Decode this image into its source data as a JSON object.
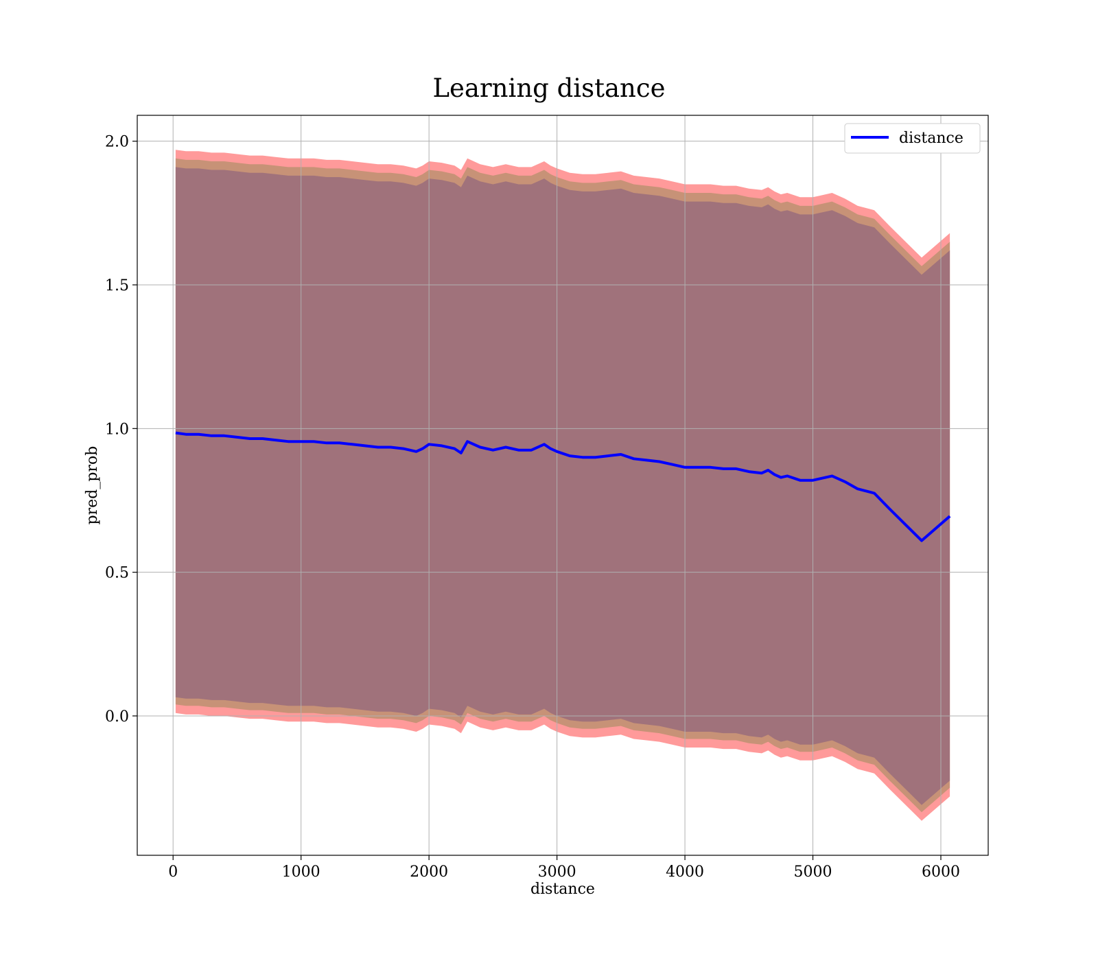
{
  "chart_data": {
    "type": "line",
    "title": "Learning distance",
    "xlabel": "distance",
    "ylabel": "pred_prob",
    "xlim": [
      -280,
      6370
    ],
    "ylim": [
      -0.485,
      2.09
    ],
    "xticks": [
      0,
      1000,
      2000,
      3000,
      4000,
      5000,
      6000
    ],
    "yticks": [
      0.0,
      0.5,
      1.0,
      1.5,
      2.0
    ],
    "xtick_labels": [
      "0",
      "1000",
      "2000",
      "3000",
      "4000",
      "5000",
      "6000"
    ],
    "ytick_labels": [
      "0.0",
      "0.5",
      "1.0",
      "1.5",
      "2.0"
    ],
    "grid": true,
    "legend": {
      "position": "top-right",
      "entries": [
        "distance"
      ]
    },
    "series": [
      {
        "name": "distance",
        "color": "#0000ff",
        "x": [
          20,
          100,
          200,
          300,
          400,
          500,
          600,
          700,
          800,
          900,
          1000,
          1100,
          1200,
          1300,
          1400,
          1500,
          1600,
          1700,
          1800,
          1900,
          1950,
          2000,
          2100,
          2200,
          2250,
          2300,
          2400,
          2500,
          2600,
          2700,
          2800,
          2900,
          2950,
          3000,
          3100,
          3200,
          3300,
          3400,
          3500,
          3600,
          3700,
          3800,
          3900,
          4000,
          4100,
          4200,
          4300,
          4400,
          4500,
          4600,
          4650,
          4700,
          4750,
          4800,
          4900,
          4950,
          5000,
          5050,
          5150,
          5250,
          5350,
          5480,
          5600,
          5850,
          6070
        ],
        "y": [
          0.985,
          0.98,
          0.98,
          0.975,
          0.975,
          0.97,
          0.965,
          0.965,
          0.96,
          0.955,
          0.955,
          0.955,
          0.95,
          0.95,
          0.945,
          0.94,
          0.935,
          0.935,
          0.93,
          0.92,
          0.93,
          0.945,
          0.94,
          0.93,
          0.915,
          0.955,
          0.935,
          0.925,
          0.935,
          0.925,
          0.925,
          0.945,
          0.93,
          0.92,
          0.905,
          0.9,
          0.9,
          0.905,
          0.91,
          0.895,
          0.89,
          0.885,
          0.875,
          0.865,
          0.865,
          0.865,
          0.86,
          0.86,
          0.85,
          0.845,
          0.855,
          0.84,
          0.83,
          0.835,
          0.82,
          0.82,
          0.82,
          0.825,
          0.835,
          0.815,
          0.79,
          0.775,
          0.72,
          0.61,
          0.695
        ]
      }
    ],
    "bands": [
      {
        "name": "outer",
        "color": "#ff9a9a",
        "offset_upper": 0.985,
        "offset_lower": -0.975
      },
      {
        "name": "middle",
        "color": "#c79277",
        "offset_upper": 0.955,
        "offset_lower": -0.945
      },
      {
        "name": "inner",
        "color": "#a0727b",
        "offset_upper": 0.925,
        "offset_lower": -0.92
      }
    ]
  }
}
